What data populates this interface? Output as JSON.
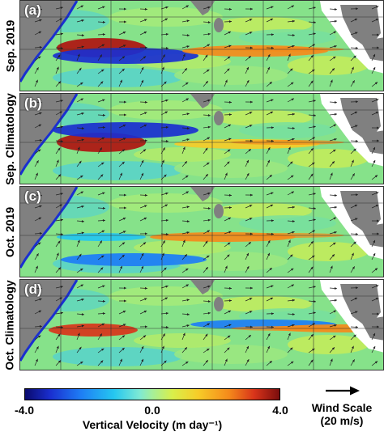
{
  "panels": [
    {
      "letter": "(a)",
      "label": "Sep. 2019"
    },
    {
      "letter": "(b)",
      "label": "Sep. Climatology"
    },
    {
      "letter": "(c)",
      "label": "Oct. 2019"
    },
    {
      "letter": "(d)",
      "label": "Oct. Climatology"
    }
  ],
  "colorbar": {
    "min_label": "-4.0",
    "mid_label": "0.0",
    "max_label": "4.0",
    "title": "Vertical Velocity (m day⁻¹)",
    "range": [
      -4.0,
      4.0
    ],
    "colors": [
      "#0a0a6e",
      "#1a2fd0",
      "#1e7ef5",
      "#25c7f0",
      "#a5ef9a",
      "#d9ef4a",
      "#f7cc28",
      "#f58b1b",
      "#d9341a",
      "#7a0d0d"
    ]
  },
  "wind_scale": {
    "label": "Wind Scale",
    "value": "(20 m/s)"
  },
  "colors": {
    "land": "#808080",
    "background_field": "#7fe08a",
    "grid": "#333333"
  }
}
